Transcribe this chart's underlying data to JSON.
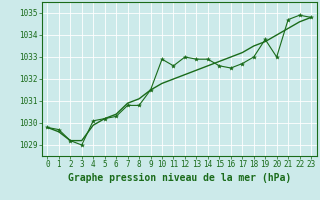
{
  "xlabel": "Graphe pression niveau de la mer (hPa)",
  "ylabel": "",
  "bg_color": "#cceaea",
  "grid_color": "#ffffff",
  "line_color": "#1a6b1a",
  "trend_color": "#1a6b1a",
  "xlim": [
    -0.5,
    23.5
  ],
  "ylim": [
    1028.5,
    1035.5
  ],
  "yticks": [
    1029,
    1030,
    1031,
    1032,
    1033,
    1034,
    1035
  ],
  "xticks": [
    0,
    1,
    2,
    3,
    4,
    5,
    6,
    7,
    8,
    9,
    10,
    11,
    12,
    13,
    14,
    15,
    16,
    17,
    18,
    19,
    20,
    21,
    22,
    23
  ],
  "hours": [
    0,
    1,
    2,
    3,
    4,
    5,
    6,
    7,
    8,
    9,
    10,
    11,
    12,
    13,
    14,
    15,
    16,
    17,
    18,
    19,
    20,
    21,
    22,
    23
  ],
  "pressure1": [
    1029.8,
    1029.7,
    1029.2,
    1029.0,
    1030.1,
    1030.2,
    1030.3,
    1030.8,
    1030.8,
    1031.5,
    1032.9,
    1032.6,
    1033.0,
    1032.9,
    1032.9,
    1032.6,
    1032.5,
    1032.7,
    1033.0,
    1033.8,
    1033.0,
    1034.7,
    1034.9,
    1034.8
  ],
  "pressure2": [
    1029.8,
    1029.6,
    1029.2,
    1029.2,
    1029.9,
    1030.2,
    1030.4,
    1030.9,
    1031.1,
    1031.5,
    1031.8,
    1032.0,
    1032.2,
    1032.4,
    1032.6,
    1032.8,
    1033.0,
    1033.2,
    1033.5,
    1033.7,
    1034.0,
    1034.3,
    1034.6,
    1034.8
  ],
  "xlabel_fontsize": 7,
  "tick_fontsize": 5.5,
  "xlabel_color": "#1a6b1a",
  "tick_color": "#1a6b1a",
  "spine_color": "#1a6b1a"
}
